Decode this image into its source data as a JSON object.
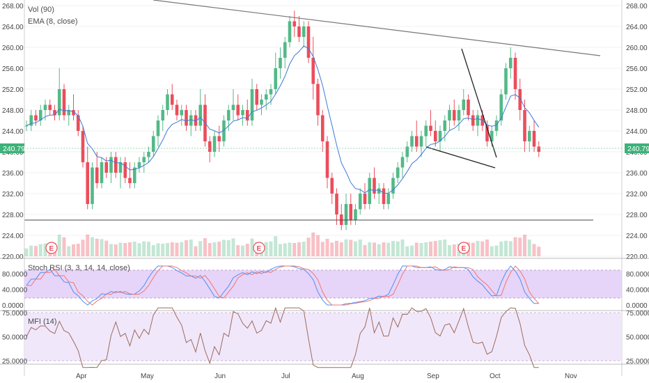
{
  "chart_data": {
    "type": "candlestick",
    "price_legend": [
      "Vol (90)",
      "EMA (8, close)"
    ],
    "price_axis": {
      "min": 220,
      "max": 268,
      "ticks": [
        "268.00",
        "264.00",
        "260.00",
        "256.00",
        "252.00",
        "248.00",
        "244.00",
        "240.00",
        "236.00",
        "232.00",
        "228.00",
        "224.00",
        "220.00"
      ]
    },
    "last_price": "240.79",
    "month_labels": [
      "Apr",
      "May",
      "Jun",
      "Jul",
      "Aug",
      "Sep",
      "Oct",
      "Nov"
    ],
    "earnings_marker": "E",
    "candles": [
      [
        245,
        246,
        244,
        245
      ],
      [
        245,
        248,
        244,
        247
      ],
      [
        247,
        248,
        245,
        246
      ],
      [
        246,
        249,
        245,
        248
      ],
      [
        248,
        250,
        246,
        249
      ],
      [
        249,
        250,
        247,
        248
      ],
      [
        248,
        249,
        246,
        247
      ],
      [
        247,
        256,
        246,
        252
      ],
      [
        252,
        253,
        246,
        247
      ],
      [
        247,
        249,
        245,
        248
      ],
      [
        248,
        251,
        246,
        247
      ],
      [
        247,
        248,
        243,
        244
      ],
      [
        244,
        245,
        237,
        238
      ],
      [
        238,
        241,
        229,
        230
      ],
      [
        230,
        238,
        229,
        237
      ],
      [
        237,
        240,
        233,
        234
      ],
      [
        234,
        239,
        233,
        238
      ],
      [
        238,
        239,
        235,
        236
      ],
      [
        236,
        240,
        234,
        239
      ],
      [
        239,
        240,
        235,
        236
      ],
      [
        236,
        239,
        233,
        238
      ],
      [
        238,
        239,
        234,
        235
      ],
      [
        235,
        238,
        233,
        234
      ],
      [
        234,
        238,
        233,
        237
      ],
      [
        237,
        239,
        236,
        238
      ],
      [
        238,
        240,
        236,
        239
      ],
      [
        239,
        241,
        238,
        240
      ],
      [
        240,
        244,
        239,
        243
      ],
      [
        243,
        247,
        241,
        246
      ],
      [
        246,
        249,
        244,
        248
      ],
      [
        248,
        252,
        247,
        251
      ],
      [
        251,
        253,
        248,
        249
      ],
      [
        249,
        250,
        246,
        247
      ],
      [
        247,
        249,
        245,
        248
      ],
      [
        248,
        249,
        244,
        245
      ],
      [
        245,
        248,
        243,
        247
      ],
      [
        247,
        248,
        244,
        245
      ],
      [
        245,
        252,
        244,
        249
      ],
      [
        249,
        251,
        241,
        242
      ],
      [
        242,
        243,
        238,
        240
      ],
      [
        240,
        244,
        239,
        243
      ],
      [
        243,
        245,
        240,
        242
      ],
      [
        242,
        247,
        241,
        246
      ],
      [
        246,
        249,
        244,
        248
      ],
      [
        248,
        252,
        246,
        249
      ],
      [
        249,
        251,
        246,
        247
      ],
      [
        247,
        249,
        245,
        248
      ],
      [
        248,
        250,
        245,
        246
      ],
      [
        246,
        254,
        245,
        252
      ],
      [
        252,
        253,
        248,
        249
      ],
      [
        249,
        251,
        247,
        250
      ],
      [
        250,
        252,
        248,
        251
      ],
      [
        251,
        253,
        249,
        252
      ],
      [
        252,
        259,
        251,
        256
      ],
      [
        256,
        260,
        254,
        258
      ],
      [
        258,
        262,
        256,
        261
      ],
      [
        261,
        266,
        260,
        265
      ],
      [
        265,
        267,
        262,
        264
      ],
      [
        264,
        266,
        261,
        262
      ],
      [
        262,
        265,
        260,
        264
      ],
      [
        264,
        265,
        257,
        258
      ],
      [
        258,
        262,
        250,
        253
      ],
      [
        253,
        254,
        245,
        247
      ],
      [
        247,
        248,
        240,
        242
      ],
      [
        242,
        243,
        233,
        235
      ],
      [
        235,
        236,
        230,
        232
      ],
      [
        232,
        233,
        226,
        228
      ],
      [
        228,
        230,
        225,
        226
      ],
      [
        226,
        232,
        225,
        230
      ],
      [
        230,
        232,
        226,
        227
      ],
      [
        227,
        230,
        226,
        229
      ],
      [
        229,
        233,
        228,
        232
      ],
      [
        232,
        234,
        229,
        230
      ],
      [
        230,
        236,
        229,
        235
      ],
      [
        235,
        237,
        231,
        232
      ],
      [
        232,
        234,
        230,
        233
      ],
      [
        233,
        234,
        229,
        230
      ],
      [
        230,
        233,
        229,
        232
      ],
      [
        232,
        236,
        231,
        235
      ],
      [
        235,
        238,
        234,
        237
      ],
      [
        237,
        240,
        235,
        239
      ],
      [
        239,
        242,
        238,
        241
      ],
      [
        241,
        244,
        240,
        243
      ],
      [
        243,
        246,
        240,
        241
      ],
      [
        241,
        244,
        239,
        243
      ],
      [
        243,
        246,
        241,
        245
      ],
      [
        245,
        248,
        243,
        244
      ],
      [
        244,
        246,
        241,
        242
      ],
      [
        242,
        245,
        240,
        244
      ],
      [
        244,
        247,
        242,
        246
      ],
      [
        246,
        249,
        244,
        248
      ],
      [
        248,
        250,
        245,
        246
      ],
      [
        246,
        249,
        244,
        248
      ],
      [
        248,
        252,
        247,
        250
      ],
      [
        250,
        251,
        246,
        247
      ],
      [
        247,
        248,
        244,
        245
      ],
      [
        245,
        248,
        243,
        247
      ],
      [
        247,
        248,
        244,
        245
      ],
      [
        245,
        246,
        241,
        242
      ],
      [
        242,
        245,
        241,
        244
      ],
      [
        244,
        247,
        243,
        246
      ],
      [
        246,
        252,
        245,
        251
      ],
      [
        251,
        257,
        250,
        256
      ],
      [
        256,
        260,
        254,
        258
      ],
      [
        258,
        259,
        250,
        252
      ],
      [
        252,
        254,
        246,
        248
      ],
      [
        248,
        250,
        240,
        242
      ],
      [
        242,
        245,
        240,
        244
      ],
      [
        244,
        246,
        240,
        241
      ],
      [
        241,
        242,
        239,
        240
      ]
    ]
  },
  "stoch_rsi": {
    "label": "Stoch RSI (3, 3, 14, 14, close)",
    "ticks": [
      "80.0000",
      "40.0000",
      "0.0000"
    ]
  },
  "mfi": {
    "label": "MFI (14)",
    "ticks": [
      "75.0000",
      "50.0000",
      "25.0000"
    ]
  },
  "colors": {
    "up": "#53b987",
    "down": "#eb4d5c",
    "ema": "#3c78d8",
    "stoch_k": "#4b8ff5",
    "stoch_d": "#f2756e",
    "mfi": "#9b6b5a",
    "band": "#e3cdf8",
    "trend": "#555555"
  }
}
